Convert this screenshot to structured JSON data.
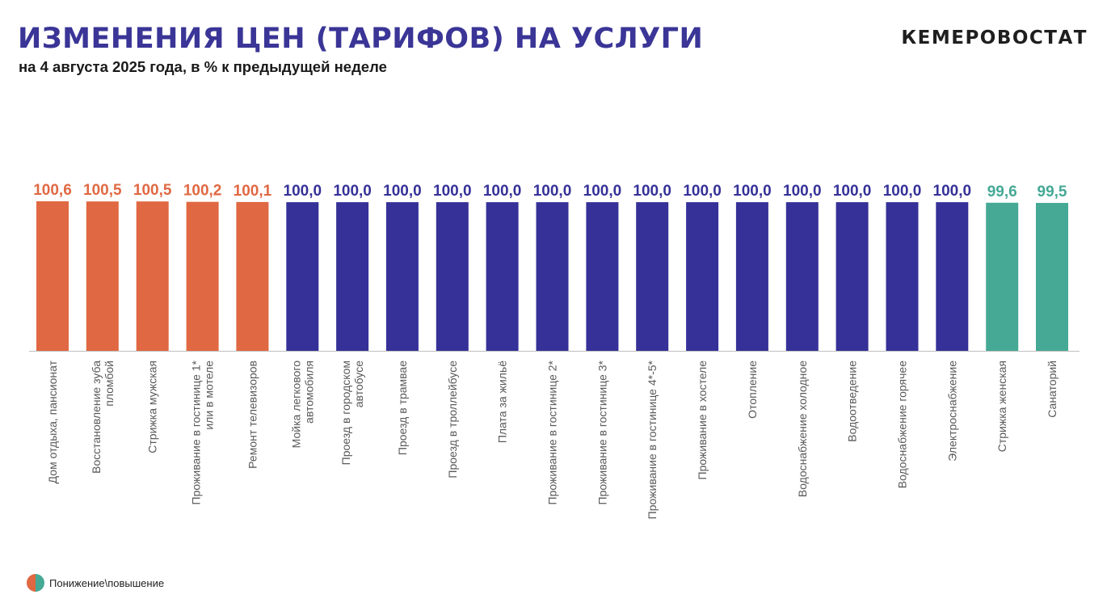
{
  "header": {
    "title": "ИЗМЕНЕНИЯ ЦЕН (ТАРИФОВ) НА УСЛУГИ",
    "subtitle": "на 4 августа 2025 года, в % к предыдущей неделе",
    "brand": "КЕМЕРОВОСТАТ"
  },
  "legend": {
    "label": "Понижение\\повышение",
    "icon": "split-circle-icon"
  },
  "colors": {
    "increase": "#e06842",
    "unchanged": "#353198",
    "decrease": "#45a996",
    "title": "#3a3596"
  },
  "chart_data": {
    "type": "bar",
    "categories": [
      "Дом отдыха, пансионат",
      "Восстановление зуба пломбой",
      "Стрижка мужская",
      "Проживание в гостинице 1* или в мотеле",
      "Ремонт телевизоров",
      "Мойка легкового автомобиля",
      "Проезд в городском автобусе",
      "Проезд в трамвае",
      "Проезд в троллейбусе",
      "Плата за жильё",
      "Проживание в гостинице 2*",
      "Проживание в гостинице 3*",
      "Проживание в гостинице 4*-5*",
      "Проживание в хостеле",
      "Отопление",
      "Водоснабжение холодное",
      "Водоотведение",
      "Водоснабжение горячее",
      "Электроснабжение",
      "Стрижка женская",
      "Санаторий"
    ],
    "label_lines": [
      [
        "Дом отдыха, пансионат"
      ],
      [
        "Восстановление зуба",
        "пломбой"
      ],
      [
        "Стрижка мужская"
      ],
      [
        "Проживание в гостинице 1*",
        "или в мотеле"
      ],
      [
        "Ремонт телевизоров"
      ],
      [
        "Мойка легкового",
        "автомобиля"
      ],
      [
        "Проезд в городском",
        "автобусе"
      ],
      [
        "Проезд в трамвае"
      ],
      [
        "Проезд в троллейбусе"
      ],
      [
        "Плата за жильё"
      ],
      [
        "Проживание в гостинице 2*"
      ],
      [
        "Проживание в гостинице 3*"
      ],
      [
        "Проживание в гостинице 4*-5*"
      ],
      [
        "Проживание в хостеле"
      ],
      [
        "Отопление"
      ],
      [
        "Водоснабжение холодное"
      ],
      [
        "Водоотведение"
      ],
      [
        "Водоснабжение горячее"
      ],
      [
        "Электроснабжение"
      ],
      [
        "Стрижка женская"
      ],
      [
        "Санаторий"
      ]
    ],
    "values": [
      100.6,
      100.5,
      100.5,
      100.2,
      100.1,
      100.0,
      100.0,
      100.0,
      100.0,
      100.0,
      100.0,
      100.0,
      100.0,
      100.0,
      100.0,
      100.0,
      100.0,
      100.0,
      100.0,
      99.6,
      99.5
    ],
    "value_labels": [
      "100,6",
      "100,5",
      "100,5",
      "100,2",
      "100,1",
      "100,0",
      "100,0",
      "100,0",
      "100,0",
      "100,0",
      "100,0",
      "100,0",
      "100,0",
      "100,0",
      "100,0",
      "100,0",
      "100,0",
      "100,0",
      "100,0",
      "99,6",
      "99,5"
    ],
    "ylim": [
      0,
      100.6
    ],
    "xlabel": "",
    "ylabel": "",
    "grid": false
  }
}
